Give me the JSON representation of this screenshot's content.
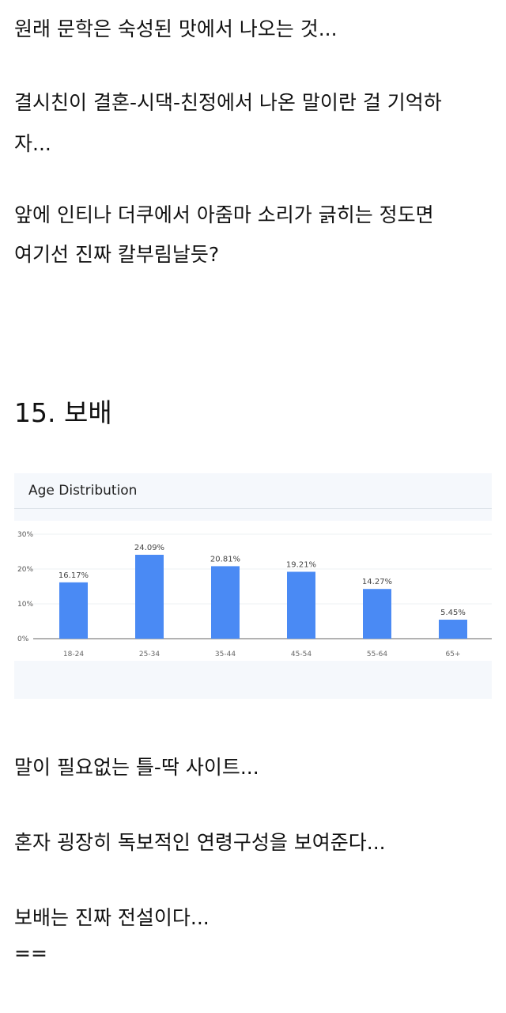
{
  "paragraphs": [
    "원래 문학은 숙성된 맛에서 나오는 것...",
    "결시친이 결혼-시댁-친정에서 나온 말이란 걸 기억하",
    "자...",
    "앞에 인티나 더쿠에서 아줌마 소리가 긁히는 정도면",
    "여기선 진짜 칼부림날듯?"
  ],
  "heading": "15. 보배",
  "closing": [
    "말이 필요없는 틀-딱 사이트...",
    "혼자 굉장히 독보적인 연령구성을 보여준다...",
    "보배는 진짜 전설이다...",
    "=="
  ],
  "chart_data": {
    "type": "bar",
    "title": "Age Distribution",
    "categories": [
      "18-24",
      "25-34",
      "35-44",
      "45-54",
      "55-64",
      "65+"
    ],
    "values": [
      16.17,
      24.09,
      20.81,
      19.21,
      14.27,
      5.45
    ],
    "data_labels": [
      "16.17%",
      "24.09%",
      "20.81%",
      "19.21%",
      "14.27%",
      "5.45%"
    ],
    "yticks": [
      "0%",
      "10%",
      "20%",
      "30%"
    ],
    "ylim": [
      0,
      30
    ],
    "grid": true,
    "bar_color": "#4a8af4"
  }
}
